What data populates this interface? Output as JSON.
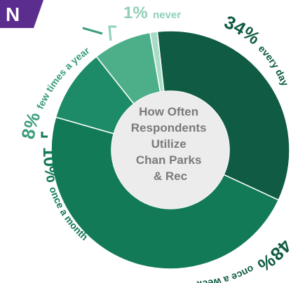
{
  "header_tab": {
    "text": "N",
    "color": "#5b2d8e"
  },
  "center_title": [
    "How Often",
    "Respondents",
    "Utilize",
    "Chan Parks",
    "& Rec"
  ],
  "chart_data": {
    "type": "donut",
    "title": "How Often Respondents Utilize Chan Parks & Rec",
    "slices": [
      {
        "label": "every day",
        "pct_text": "34%",
        "value": 34,
        "color": "#0f5b43",
        "label_color": "#0f5b43"
      },
      {
        "label": "once a week",
        "pct_text": "48%",
        "value": 48,
        "color": "#137a58",
        "label_color": "#0f5b43"
      },
      {
        "label": "once a month",
        "pct_text": "10%",
        "value": 10,
        "color": "#1e8b68",
        "label_color": "#137a58"
      },
      {
        "label": "few times a year",
        "pct_text": "8%",
        "value": 8,
        "color": "#4caf8a",
        "label_color": "#3a9d78"
      },
      {
        "label": "never",
        "pct_text": "1%",
        "value": 1,
        "color": "#a8dcc6",
        "label_color": "#8ed0b6"
      }
    ]
  }
}
